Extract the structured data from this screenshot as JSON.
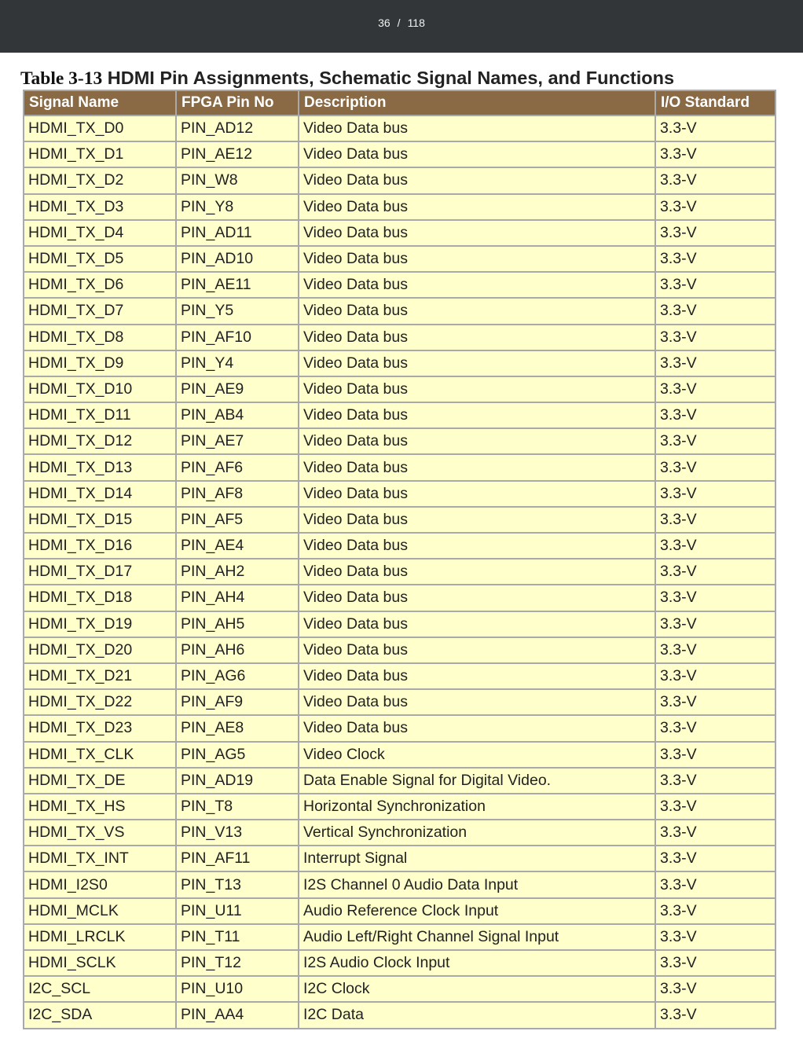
{
  "toolbar": {
    "current_page": "36",
    "separator": "/",
    "total_pages": "118"
  },
  "caption": {
    "number": "Table 3-13",
    "title": "HDMI Pin Assignments, Schematic Signal Names, and Functions"
  },
  "table": {
    "headers": [
      "Signal Name",
      "FPGA Pin No",
      "Description",
      "I/O Standard"
    ],
    "rows": [
      [
        "HDMI_TX_D0",
        "PIN_AD12",
        "Video Data bus",
        "3.3-V"
      ],
      [
        "HDMI_TX_D1",
        "PIN_AE12",
        "Video Data bus",
        "3.3-V"
      ],
      [
        "HDMI_TX_D2",
        "PIN_W8",
        "Video Data bus",
        "3.3-V"
      ],
      [
        "HDMI_TX_D3",
        "PIN_Y8",
        "Video Data bus",
        "3.3-V"
      ],
      [
        "HDMI_TX_D4",
        "PIN_AD11",
        "Video Data bus",
        "3.3-V"
      ],
      [
        "HDMI_TX_D5",
        "PIN_AD10",
        "Video Data bus",
        "3.3-V"
      ],
      [
        "HDMI_TX_D6",
        "PIN_AE11",
        "Video Data bus",
        "3.3-V"
      ],
      [
        "HDMI_TX_D7",
        "PIN_Y5",
        "Video Data bus",
        "3.3-V"
      ],
      [
        "HDMI_TX_D8",
        "PIN_AF10",
        "Video Data bus",
        "3.3-V"
      ],
      [
        "HDMI_TX_D9",
        "PIN_Y4",
        "Video Data bus",
        "3.3-V"
      ],
      [
        "HDMI_TX_D10",
        "PIN_AE9",
        "Video Data bus",
        "3.3-V"
      ],
      [
        "HDMI_TX_D11",
        "PIN_AB4",
        "Video Data bus",
        "3.3-V"
      ],
      [
        "HDMI_TX_D12",
        "PIN_AE7",
        "Video Data bus",
        "3.3-V"
      ],
      [
        "HDMI_TX_D13",
        "PIN_AF6",
        "Video Data bus",
        "3.3-V"
      ],
      [
        "HDMI_TX_D14",
        "PIN_AF8",
        "Video Data bus",
        "3.3-V"
      ],
      [
        "HDMI_TX_D15",
        "PIN_AF5",
        "Video Data bus",
        "3.3-V"
      ],
      [
        "HDMI_TX_D16",
        "PIN_AE4",
        "Video Data bus",
        "3.3-V"
      ],
      [
        "HDMI_TX_D17",
        "PIN_AH2",
        "Video Data bus",
        "3.3-V"
      ],
      [
        "HDMI_TX_D18",
        "PIN_AH4",
        "Video Data bus",
        "3.3-V"
      ],
      [
        "HDMI_TX_D19",
        "PIN_AH5",
        "Video Data bus",
        "3.3-V"
      ],
      [
        "HDMI_TX_D20",
        "PIN_AH6",
        "Video Data bus",
        "3.3-V"
      ],
      [
        "HDMI_TX_D21",
        "PIN_AG6",
        "Video Data bus",
        "3.3-V"
      ],
      [
        "HDMI_TX_D22",
        "PIN_AF9",
        "Video Data bus",
        "3.3-V"
      ],
      [
        "HDMI_TX_D23",
        "PIN_AE8",
        "Video Data bus",
        "3.3-V"
      ],
      [
        "HDMI_TX_CLK",
        "PIN_AG5",
        "Video Clock",
        "3.3-V"
      ],
      [
        "HDMI_TX_DE",
        "PIN_AD19",
        "Data Enable Signal for Digital Video.",
        "3.3-V"
      ],
      [
        "HDMI_TX_HS",
        "PIN_T8",
        "Horizontal Synchronization",
        "3.3-V"
      ],
      [
        "HDMI_TX_VS",
        "PIN_V13",
        "Vertical Synchronization",
        "3.3-V"
      ],
      [
        "HDMI_TX_INT",
        "PIN_AF11",
        "Interrupt Signal",
        "3.3-V"
      ],
      [
        "HDMI_I2S0",
        "PIN_T13",
        "I2S Channel 0 Audio Data Input",
        "3.3-V"
      ],
      [
        "HDMI_MCLK",
        "PIN_U11",
        "Audio Reference Clock Input",
        "3.3-V"
      ],
      [
        "HDMI_LRCLK",
        "PIN_T11",
        "Audio Left/Right Channel Signal Input",
        "3.3-V"
      ],
      [
        "HDMI_SCLK",
        "PIN_T12",
        "I2S Audio Clock Input",
        "3.3-V"
      ],
      [
        "I2C_SCL",
        "PIN_U10",
        "I2C Clock",
        "3.3-V"
      ],
      [
        "I2C_SDA",
        "PIN_AA4",
        "I2C Data",
        "3.3-V"
      ]
    ]
  },
  "colors": {
    "toolbar_bg": "#323639",
    "header_bg": "#8a6a45",
    "cell_bg": "#ffffcc",
    "border": "#a9a9a9"
  }
}
